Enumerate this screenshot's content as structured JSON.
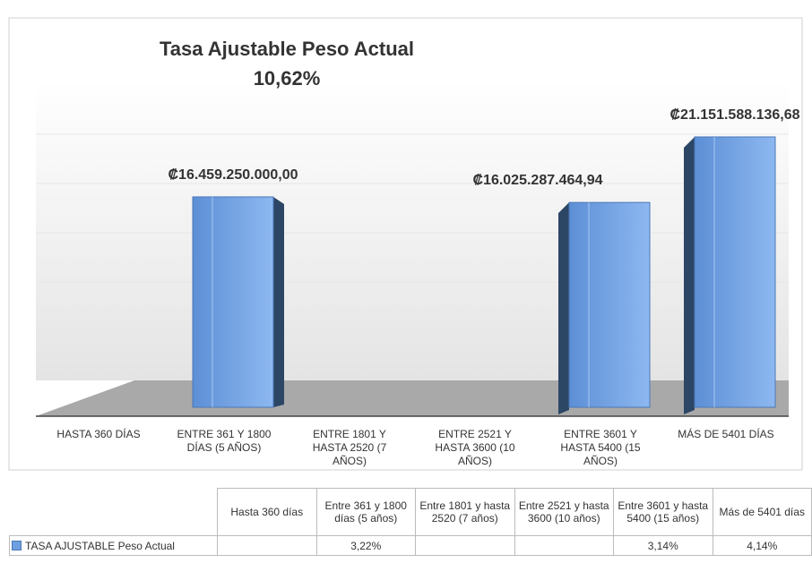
{
  "chart_data": {
    "type": "bar3d",
    "title": "Tasa Ajustable Peso Actual",
    "subtitle": "10,62%",
    "categories": [
      "HASTA 360 DÍAS",
      "ENTRE 361 Y 1800 DÍAS (5 AÑOS)",
      "ENTRE 1801 Y HASTA 2520 (7 AÑOS)",
      "ENTRE  2521 Y HASTA 3600 (10 AÑOS)",
      "ENTRE 3601 Y HASTA 5400 (15 AÑOS)",
      "MÁS DE 5401 DÍAS"
    ],
    "values": [
      null,
      16459250000,
      null,
      null,
      16025287464.94,
      21151588136.68
    ],
    "value_labels": [
      null,
      "₡16.459.250.000,00",
      null,
      null,
      "₡16.025.287.464,94",
      "₡21.151.588.136,68"
    ],
    "color": "#6f9fe0",
    "ylim": [
      0,
      25000000000
    ],
    "table": {
      "categories": [
        "Hasta 360 días",
        "Entre 361 y 1800 días (5 años)",
        "Entre 1801 y hasta 2520 (7 años)",
        "Entre  2521 y hasta 3600 (10 años)",
        "Entre 3601 y hasta 5400 (15 años)",
        "Más de 5401 días"
      ],
      "series": [
        {
          "name": "TASA AJUSTABLE Peso Actual",
          "values": [
            null,
            3.22,
            null,
            null,
            3.14,
            4.14
          ],
          "value_labels": [
            null,
            "3,22%",
            null,
            null,
            "3,14%",
            "4,14%"
          ]
        }
      ]
    }
  }
}
